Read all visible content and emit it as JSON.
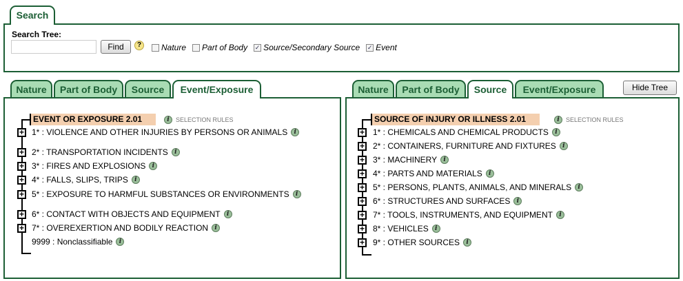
{
  "colors": {
    "accent": "#1b5e34",
    "tab_inactive": "#a9dcb4",
    "header_bg": "#f4cfaf"
  },
  "search": {
    "tab_label": "Search",
    "title": "Search Tree:",
    "input_value": "",
    "input_placeholder": "",
    "find_label": "Find",
    "help_icon": "question-icon",
    "options": [
      {
        "label": "Nature",
        "checked": false
      },
      {
        "label": "Part of Body",
        "checked": false
      },
      {
        "label": "Source/Secondary Source",
        "checked": true
      },
      {
        "label": "Event",
        "checked": true
      }
    ]
  },
  "left": {
    "tabs": [
      "Nature",
      "Part of Body",
      "Source",
      "Event/Exposure"
    ],
    "active_tab": "Event/Exposure",
    "header": "EVENT OR EXPOSURE 2.01",
    "rules": "SELECTION RULES",
    "items": [
      {
        "text": "1* : VIOLENCE AND OTHER INJURIES BY PERSONS OR ANIMALS",
        "expandable": true
      },
      {
        "text": "2* : TRANSPORTATION INCIDENTS",
        "expandable": true
      },
      {
        "text": "3* : FIRES AND EXPLOSIONS",
        "expandable": true
      },
      {
        "text": "4* : FALLS, SLIPS, TRIPS",
        "expandable": true
      },
      {
        "text": "5* : EXPOSURE TO HARMFUL SUBSTANCES OR ENVIRONMENTS",
        "expandable": true
      },
      {
        "text": "6* : CONTACT WITH OBJECTS AND EQUIPMENT",
        "expandable": true
      },
      {
        "text": "7* : OVEREXERTION AND BODILY REACTION",
        "expandable": true
      },
      {
        "text": "9999 : Nonclassifiable",
        "expandable": false
      }
    ]
  },
  "right": {
    "tabs": [
      "Nature",
      "Part of Body",
      "Source",
      "Event/Exposure"
    ],
    "active_tab": "Source",
    "hide_tree_label": "Hide Tree",
    "header": "SOURCE OF INJURY OR ILLNESS 2.01",
    "rules": "SELECTION RULES",
    "items": [
      {
        "text": "1* : CHEMICALS AND CHEMICAL PRODUCTS",
        "expandable": true
      },
      {
        "text": "2* : CONTAINERS, FURNITURE AND FIXTURES",
        "expandable": true
      },
      {
        "text": "3* : MACHINERY",
        "expandable": true
      },
      {
        "text": "4* : PARTS AND MATERIALS",
        "expandable": true
      },
      {
        "text": "5* : PERSONS, PLANTS, ANIMALS, AND MINERALS",
        "expandable": true
      },
      {
        "text": "6* : STRUCTURES AND SURFACES",
        "expandable": true
      },
      {
        "text": "7* : TOOLS, INSTRUMENTS, AND EQUIPMENT",
        "expandable": true
      },
      {
        "text": "8* : VEHICLES",
        "expandable": true
      },
      {
        "text": "9* : OTHER SOURCES",
        "expandable": true
      }
    ]
  }
}
